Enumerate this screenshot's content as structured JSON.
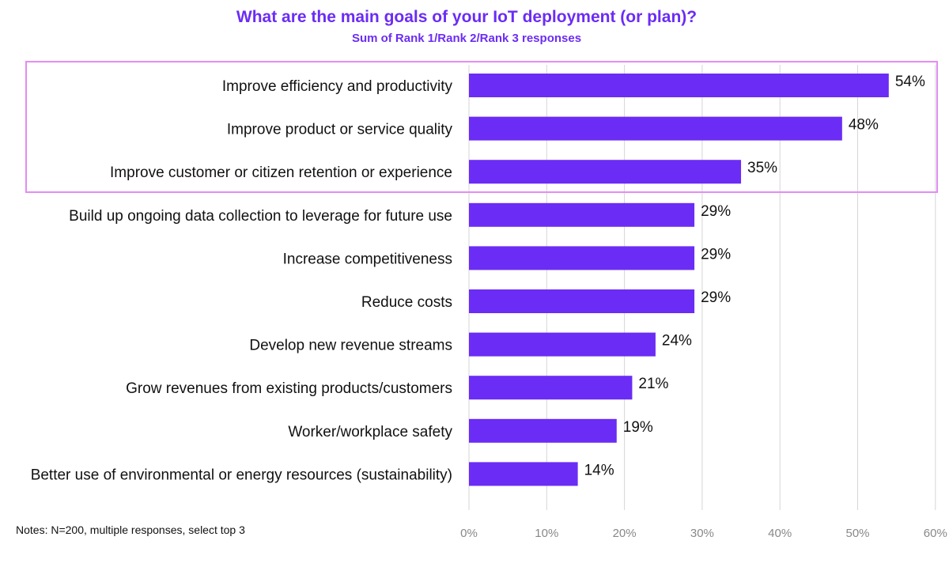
{
  "colors": {
    "title": "#6b2cf5",
    "bar": "#6b2cf5",
    "highlight_border": "#e48cf2",
    "gridline": "#d6d6d6",
    "tick_text": "#888888"
  },
  "notes": "Notes: N=200, multiple responses, select top 3",
  "highlight": {
    "rows": 3
  },
  "chart_data": {
    "type": "bar",
    "orientation": "horizontal",
    "title": "What are the main goals of your IoT deployment (or plan)?",
    "subtitle": "Sum of Rank 1/Rank 2/Rank 3 responses",
    "categories": [
      "Improve efficiency and productivity",
      "Improve product or service quality",
      "Improve customer or citizen retention or experience",
      "Build up ongoing data collection to leverage for future use",
      "Increase competitiveness",
      "Reduce costs",
      "Develop new revenue streams",
      "Grow revenues from existing products/customers",
      "Worker/workplace safety",
      "Better use of environmental or energy resources (sustainability)"
    ],
    "values": [
      54,
      48,
      35,
      29,
      29,
      29,
      24,
      21,
      19,
      14
    ],
    "value_labels": [
      "54%",
      "48%",
      "35%",
      "29%",
      "29%",
      "29%",
      "24%",
      "21%",
      "19%",
      "14%"
    ],
    "xlim": [
      0,
      60
    ],
    "xticks": [
      0,
      10,
      20,
      30,
      40,
      50,
      60
    ],
    "xtick_labels": [
      "0%",
      "10%",
      "20%",
      "30%",
      "40%",
      "50%",
      "60%"
    ],
    "grid": true
  }
}
